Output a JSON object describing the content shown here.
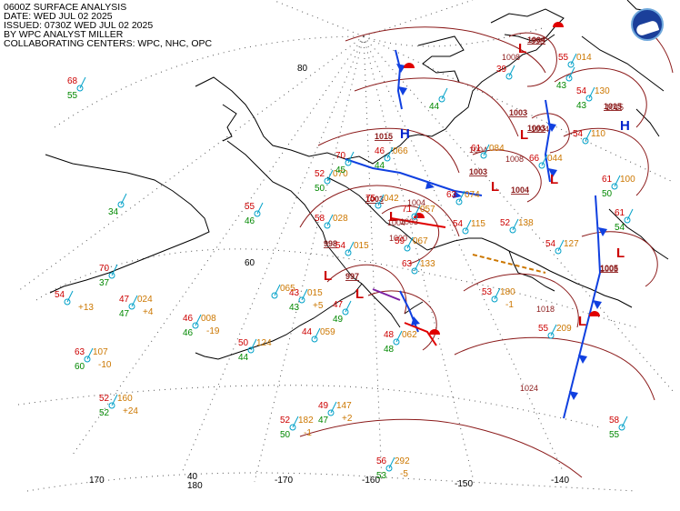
{
  "header": {
    "title": "0600Z SURFACE ANALYSIS",
    "date": "DATE: WED JUL 02 2025",
    "issued": "ISSUED: 0730Z WED JUL 02 2025",
    "analyst": "BY WPC ANALYST MILLER",
    "centers": "COLLABORATING CENTERS: WPC, NHC, OPC"
  },
  "logo": {
    "name": "noaa-logo",
    "colors": {
      "ring": "#6fa8dc",
      "fill": "#1b3f9a"
    }
  },
  "colors": {
    "temp": "#cc0000",
    "dewpoint": "#008800",
    "pressure": "#cc7700",
    "station": "#00a0c8",
    "isobar": "#8b1a1a",
    "high": "#0022cc",
    "low": "#cc0000",
    "cold_front": "#1040e0",
    "warm_front": "#e00000",
    "trough": "#cc7700",
    "dryline": "#7b1fa2"
  },
  "graticule": {
    "lat_labels": [
      "80",
      "60",
      "40"
    ],
    "lon_labels": [
      "170",
      "180",
      "-170",
      "-160",
      "-150",
      "-140"
    ]
  },
  "systems": {
    "highs": [
      {
        "label": "H",
        "pressure": "1015"
      },
      {
        "label": "H",
        "pressure": "1015"
      }
    ],
    "lows": [
      {
        "label": "L",
        "pressure": "1004"
      },
      {
        "label": "L",
        "pressure": "1003"
      },
      {
        "label": "L",
        "pressure": "1003"
      },
      {
        "label": "L",
        "pressure": "1004"
      },
      {
        "label": "L",
        "pressure": "1003"
      },
      {
        "label": "L",
        "pressure": "1003"
      },
      {
        "label": "L",
        "pressure": "997"
      },
      {
        "label": "L",
        "pressure": "1005"
      },
      {
        "label": "L",
        "pressure": "998"
      }
    ]
  },
  "isobar_labels": [
    "1008",
    "1008",
    "1004",
    "1004",
    "1004",
    "1003",
    "1004",
    "998",
    "1000",
    "1018",
    "1024",
    "1005",
    "1015"
  ],
  "stations": [
    {
      "t": "68",
      "td": "55"
    },
    {
      "t": "",
      "td": "34"
    },
    {
      "t": "55",
      "td": "46"
    },
    {
      "t": "54",
      "p": "",
      "trend": "+13"
    },
    {
      "t": "70",
      "td": "37"
    },
    {
      "t": "47",
      "p": "024",
      "td": "47",
      "trend": "+4"
    },
    {
      "t": "46",
      "p": "008",
      "td": "46",
      "trend": "-19"
    },
    {
      "t": "50",
      "p": "124",
      "td": "44"
    },
    {
      "t": "63",
      "p": "107",
      "td": "60",
      "trend": "-10"
    },
    {
      "t": "52",
      "p": "160",
      "td": "52",
      "trend": "+24"
    },
    {
      "t": "52",
      "p": "182",
      "td": "50",
      "trend": "-1"
    },
    {
      "t": "49",
      "p": "147",
      "td": "47",
      "trend": "+2"
    },
    {
      "t": "56",
      "p": "292",
      "td": "53",
      "trend": "-5"
    },
    {
      "t": "43",
      "p": "015",
      "td": "43",
      "trend": "+5"
    },
    {
      "t": "",
      "p": "065"
    },
    {
      "t": "44",
      "p": "059"
    },
    {
      "t": "47",
      "td": "49"
    },
    {
      "t": "48",
      "p": "062",
      "td": "48"
    },
    {
      "t": "53",
      "p": "180",
      "trend": "-1"
    },
    {
      "t": "55",
      "p": "209"
    },
    {
      "t": "54",
      "p": "127"
    },
    {
      "t": "52",
      "p": "138"
    },
    {
      "t": "54",
      "p": "115"
    },
    {
      "t": "59",
      "p": "067"
    },
    {
      "t": "63",
      "p": "133"
    },
    {
      "t": "54",
      "p": "015"
    },
    {
      "t": "58",
      "p": "028"
    },
    {
      "t": "75",
      "p": "042"
    },
    {
      "t": "71",
      "p": "057"
    },
    {
      "t": "63",
      "p": "074"
    },
    {
      "t": "52",
      "p": "070",
      "td": "50"
    },
    {
      "t": "70",
      "td": "45"
    },
    {
      "t": "46",
      "p": "066",
      "td": "44"
    },
    {
      "t": "61",
      "p": "084"
    },
    {
      "t": "66",
      "p": "044"
    },
    {
      "t": "54",
      "p": "130",
      "td": "43"
    },
    {
      "t": "54",
      "p": "110"
    },
    {
      "t": "61",
      "p": "100",
      "td": "50"
    },
    {
      "t": "61",
      "td": "54"
    },
    {
      "t": "58",
      "td": "55"
    },
    {
      "t": "55",
      "p": "014"
    },
    {
      "t": "39",
      "p": ""
    },
    {
      "t": "",
      "td": "43"
    },
    {
      "t": "",
      "td": "44"
    }
  ]
}
